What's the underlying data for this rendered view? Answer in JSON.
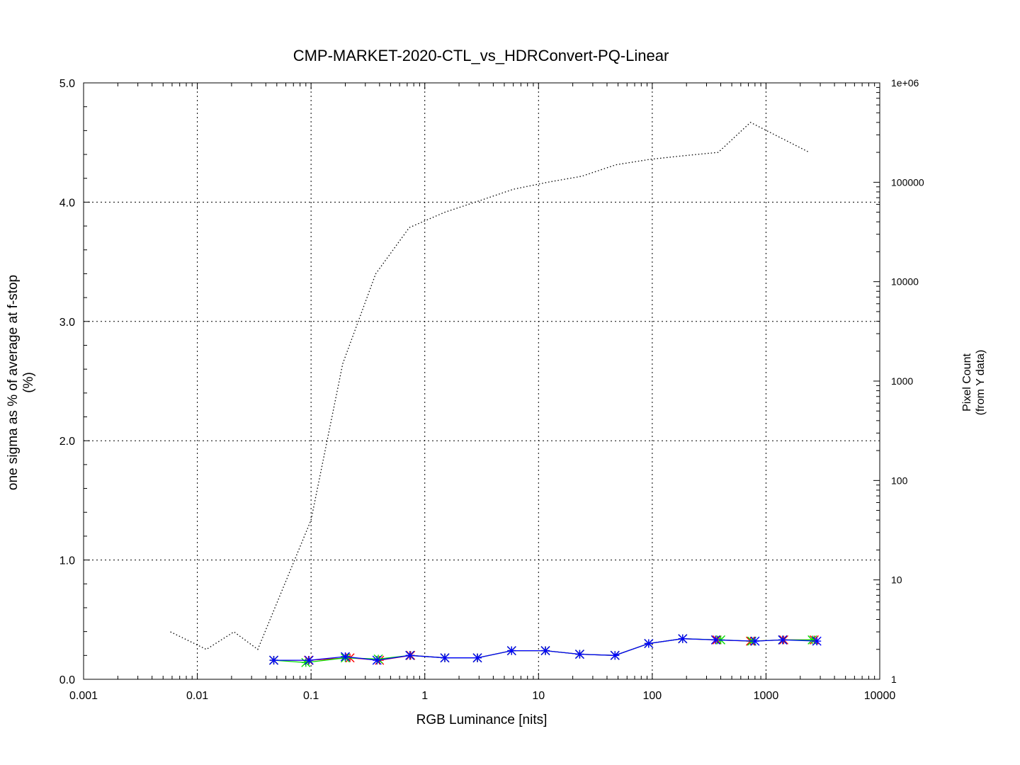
{
  "chart_data": {
    "type": "line",
    "title": "CMP-MARKET-2020-CTL_vs_HDRConvert-PQ-Linear",
    "xlabel": "RGB Luminance [nits]",
    "ylabel": "one sigma as % of average at f-stop",
    "ylabel_unit": "(%)",
    "y2label": "Pixel Count",
    "y2label_sub": "(from Y data)",
    "xscale": "log",
    "xlim": [
      0.001,
      10000
    ],
    "ylim": [
      0,
      5
    ],
    "y2scale": "log",
    "y2lim": [
      1,
      1000000
    ],
    "grid": true,
    "x_tick_labels": [
      "0.001",
      "0.01",
      "0.1",
      "1",
      "10",
      "100",
      "1000",
      "10000"
    ],
    "y_tick_labels": [
      "0.0",
      "1.0",
      "2.0",
      "3.0",
      "4.0",
      "5.0"
    ],
    "y2_tick_labels": [
      "1",
      "10",
      "100",
      "1000",
      "10000",
      "100000",
      "1e+06"
    ],
    "series": [
      {
        "color": "#ff0000",
        "axis": "y",
        "points": [
          [
            0.047,
            0.16
          ],
          [
            0.095,
            0.16
          ],
          [
            0.22,
            0.18
          ],
          [
            0.4,
            0.16
          ],
          [
            0.75,
            0.2
          ],
          [
            1.5,
            0.18
          ],
          [
            2.9,
            0.18
          ],
          [
            5.8,
            0.24
          ],
          [
            11.5,
            0.24
          ],
          [
            23,
            0.21
          ],
          [
            47,
            0.2
          ],
          [
            93,
            0.3
          ],
          [
            185,
            0.34
          ],
          [
            370,
            0.33
          ],
          [
            730,
            0.32
          ],
          [
            1430,
            0.33
          ],
          [
            2650,
            0.33
          ]
        ]
      },
      {
        "color": "#00dd00",
        "axis": "y",
        "points": [
          [
            0.047,
            0.16
          ],
          [
            0.09,
            0.14
          ],
          [
            0.2,
            0.18
          ],
          [
            0.39,
            0.17
          ],
          [
            0.74,
            0.2
          ],
          [
            1.5,
            0.18
          ],
          [
            2.9,
            0.18
          ],
          [
            5.8,
            0.24
          ],
          [
            11.5,
            0.24
          ],
          [
            23,
            0.21
          ],
          [
            47,
            0.2
          ],
          [
            93,
            0.3
          ],
          [
            185,
            0.34
          ],
          [
            400,
            0.33
          ],
          [
            750,
            0.32
          ],
          [
            1400,
            0.33
          ],
          [
            2550,
            0.33
          ]
        ]
      },
      {
        "color": "#0000ff",
        "axis": "y",
        "points": [
          [
            0.047,
            0.16
          ],
          [
            0.096,
            0.16
          ],
          [
            0.2,
            0.19
          ],
          [
            0.38,
            0.16
          ],
          [
            0.74,
            0.2
          ],
          [
            1.5,
            0.18
          ],
          [
            2.9,
            0.18
          ],
          [
            5.8,
            0.24
          ],
          [
            11.5,
            0.24
          ],
          [
            23,
            0.21
          ],
          [
            47,
            0.2
          ],
          [
            93,
            0.3
          ],
          [
            185,
            0.34
          ],
          [
            360,
            0.33
          ],
          [
            800,
            0.32
          ],
          [
            1400,
            0.33
          ],
          [
            2800,
            0.32
          ]
        ]
      },
      {
        "color": "#000000",
        "axis": "y2",
        "style": "dotted",
        "points": [
          [
            0.0058,
            3
          ],
          [
            0.012,
            2
          ],
          [
            0.021,
            3
          ],
          [
            0.034,
            2
          ],
          [
            0.1,
            40
          ],
          [
            0.19,
            1500
          ],
          [
            0.37,
            12000
          ],
          [
            0.73,
            35000
          ],
          [
            1.5,
            50000
          ],
          [
            3.0,
            65000
          ],
          [
            6.0,
            85000
          ],
          [
            12,
            100000
          ],
          [
            24,
            115000
          ],
          [
            48,
            150000
          ],
          [
            95,
            170000
          ],
          [
            190,
            185000
          ],
          [
            380,
            200000
          ],
          [
            730,
            400000
          ],
          [
            2400,
            200000
          ]
        ]
      }
    ]
  }
}
